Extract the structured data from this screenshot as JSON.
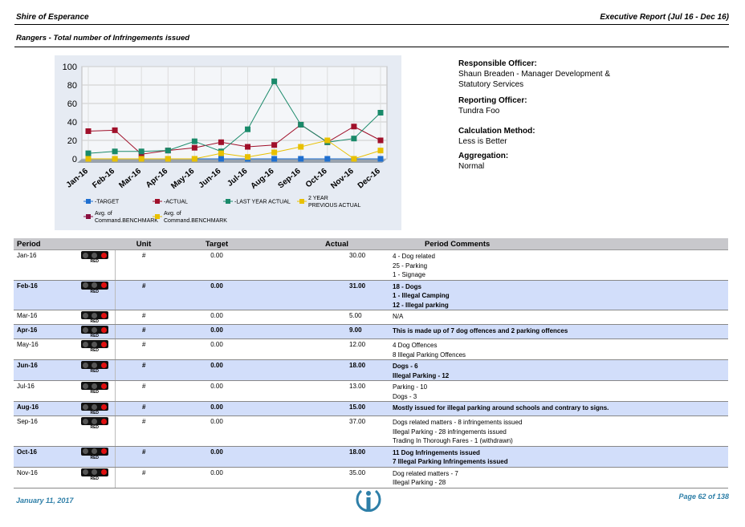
{
  "header": {
    "left": "Shire of Esperance",
    "right": "Executive Report (Jul 16 - Dec 16)"
  },
  "subtitle": "Rangers - Total number of Infringements issued",
  "info": {
    "responsible_label": "Responsible Officer:",
    "responsible_value": "Shaun Breaden - Manager Development & Statutory Services",
    "reporting_label": "Reporting Officer:",
    "reporting_value": "Tundra Foo",
    "calc_label": "Calculation Method:",
    "calc_value": "Less is Better",
    "agg_label": "Aggregation:",
    "agg_value": "Normal"
  },
  "chart_data": {
    "type": "line",
    "categories": [
      "Jan-16",
      "Feb-16",
      "Mar-16",
      "Apr-16",
      "May-16",
      "Jun-16",
      "Jul-16",
      "Aug-16",
      "Sep-16",
      "Oct-16",
      "Nov-16",
      "Dec-16"
    ],
    "ylim": [
      0,
      100
    ],
    "yticks": [
      0,
      20,
      40,
      60,
      80,
      100
    ],
    "series": [
      {
        "name": "TARGET",
        "color": "#1f6fd0",
        "values": [
          0,
          0,
          0,
          0,
          0,
          0,
          0,
          0,
          0,
          0,
          0,
          0
        ]
      },
      {
        "name": "ACTUAL",
        "color": "#a0102a",
        "values": [
          30,
          31,
          5,
          9,
          12,
          18,
          13,
          15,
          37,
          18,
          35,
          20
        ]
      },
      {
        "name": "LAST YEAR ACTUAL",
        "color": "#1a8a6a",
        "values": [
          6,
          8,
          8,
          9,
          19,
          8,
          32,
          84,
          37,
          18,
          22,
          50
        ]
      },
      {
        "name": "2 YEAR PREVIOUS ACTUAL",
        "color": "#e8c000",
        "values": [
          0,
          0,
          0,
          0,
          0,
          6,
          2,
          7,
          13,
          20,
          0,
          9
        ]
      }
    ],
    "legend_extra": [
      {
        "name": "Avg. of Command.BENCHMARK",
        "color": "#8a1040"
      },
      {
        "name": "Avg. of Command.BENCHMARK",
        "color": "#e8c000"
      }
    ]
  },
  "table": {
    "headers": [
      "Period",
      "Unit",
      "Target",
      "Actual",
      "Period Comments"
    ],
    "status_text": "RED",
    "rows": [
      {
        "period": "Jan-16",
        "unit": "#",
        "target": "0.00",
        "actual": "30.00",
        "comments": [
          "4 - Dog related",
          "25 - Parking",
          "1 - Signage"
        ]
      },
      {
        "period": "Feb-16",
        "unit": "#",
        "target": "0.00",
        "actual": "31.00",
        "comments": [
          "18 - Dogs",
          "1 - Illegal Camping",
          "12 - Illegal parking"
        ]
      },
      {
        "period": "Mar-16",
        "unit": "#",
        "target": "0.00",
        "actual": "5.00",
        "comments": [
          "N/A"
        ]
      },
      {
        "period": "Apr-16",
        "unit": "#",
        "target": "0.00",
        "actual": "9.00",
        "comments": [
          "This is made up of 7 dog offences and 2 parking offences"
        ]
      },
      {
        "period": "May-16",
        "unit": "#",
        "target": "0.00",
        "actual": "12.00",
        "comments": [
          "4 Dog Offences",
          "8 Illegal Parking Offences"
        ]
      },
      {
        "period": "Jun-16",
        "unit": "#",
        "target": "0.00",
        "actual": "18.00",
        "comments": [
          "Dogs - 6",
          "Illegal Parking - 12"
        ]
      },
      {
        "period": "Jul-16",
        "unit": "#",
        "target": "0.00",
        "actual": "13.00",
        "comments": [
          "Parking - 10",
          "Dogs - 3"
        ]
      },
      {
        "period": "Aug-16",
        "unit": "#",
        "target": "0.00",
        "actual": "15.00",
        "comments": [
          "Mostly issued for illegal parking around schools and contrary to signs."
        ]
      },
      {
        "period": "Sep-16",
        "unit": "#",
        "target": "0.00",
        "actual": "37.00",
        "comments": [
          "Dogs related matters - 8 infringements issued",
          "Illegal Parking - 28 infringements issued",
          "Trading In Thorough Fares  - 1 (withdrawn)"
        ]
      },
      {
        "period": "Oct-16",
        "unit": "#",
        "target": "0.00",
        "actual": "18.00",
        "comments": [
          "11 Dog Infringements issued",
          "7 Illegal Parking Infringements issued"
        ]
      },
      {
        "period": "Nov-16",
        "unit": "#",
        "target": "0.00",
        "actual": "35.00",
        "comments": [
          "Dog related matters - 7",
          "Illegal Parking - 28"
        ]
      }
    ]
  },
  "footer": {
    "date": "January 11, 2017",
    "page": "Page 62 of 138"
  }
}
